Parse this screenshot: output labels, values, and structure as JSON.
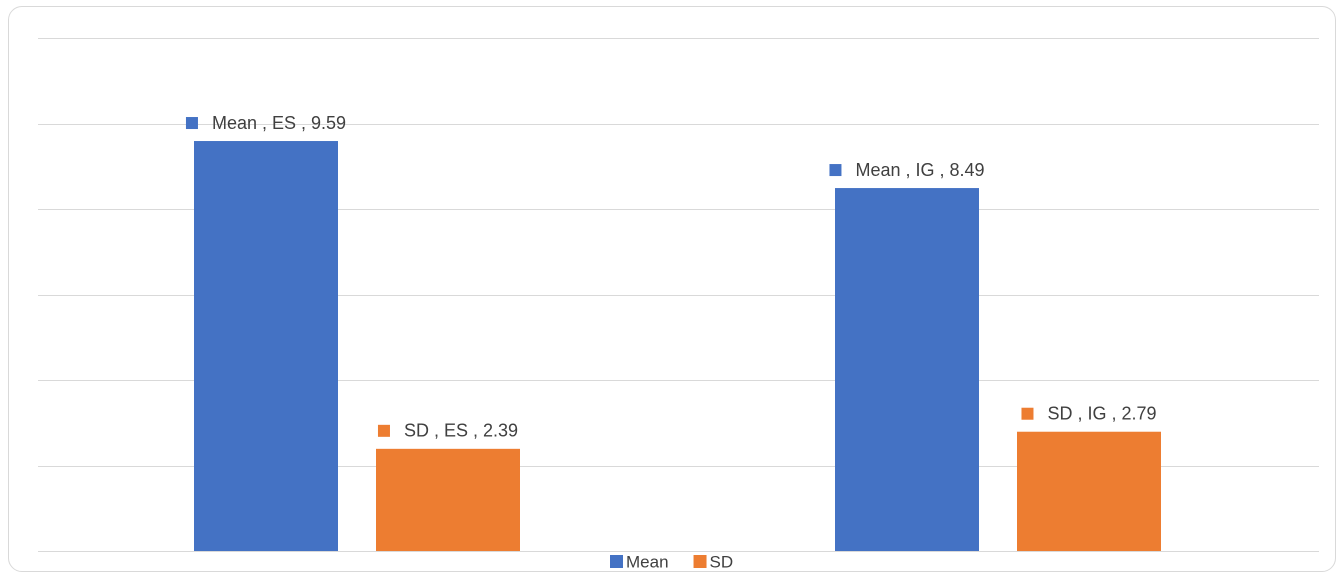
{
  "chart_data": {
    "type": "bar",
    "categories": [
      "ES",
      "IG"
    ],
    "series": [
      {
        "name": "Mean",
        "values": [
          9.59,
          8.49
        ],
        "color": "#4472C4"
      },
      {
        "name": "SD",
        "values": [
          2.39,
          2.79
        ],
        "color": "#ED7D31"
      }
    ],
    "data_labels": [
      [
        "Mean , ES , 9.59",
        "Mean , IG , 8.49"
      ],
      [
        "SD , ES , 2.39",
        "SD , IG , 2.79"
      ]
    ],
    "title": "",
    "xlabel": "",
    "ylabel": "",
    "ylim": [
      0,
      12
    ],
    "ytick_step": 2,
    "grid": true,
    "gridline_color": "#d9d9d9",
    "legend": {
      "placement": "bottom",
      "entries": [
        "Mean",
        "SD"
      ]
    }
  }
}
